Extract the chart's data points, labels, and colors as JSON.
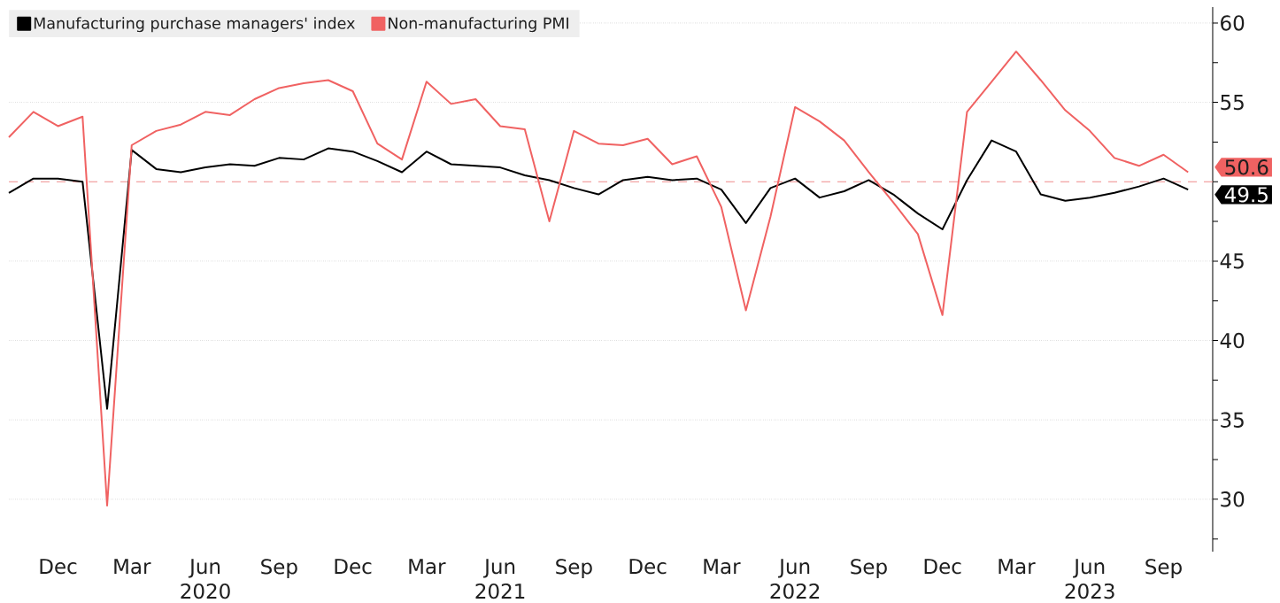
{
  "chart_data": {
    "type": "line",
    "x": [
      "2019-10",
      "2019-11",
      "2019-12",
      "2020-01",
      "2020-02",
      "2020-03",
      "2020-04",
      "2020-05",
      "2020-06",
      "2020-07",
      "2020-08",
      "2020-09",
      "2020-10",
      "2020-11",
      "2020-12",
      "2021-01",
      "2021-02",
      "2021-03",
      "2021-04",
      "2021-05",
      "2021-06",
      "2021-07",
      "2021-08",
      "2021-09",
      "2021-10",
      "2021-11",
      "2021-12",
      "2022-01",
      "2022-02",
      "2022-03",
      "2022-04",
      "2022-05",
      "2022-06",
      "2022-07",
      "2022-08",
      "2022-09",
      "2022-10",
      "2022-11",
      "2022-12",
      "2023-01",
      "2023-02",
      "2023-03",
      "2023-04",
      "2023-05",
      "2023-06",
      "2023-07",
      "2023-08",
      "2023-09",
      "2023-10"
    ],
    "series": [
      {
        "name": "Manufacturing purchase managers' index",
        "color": "#000000",
        "values": [
          49.3,
          50.2,
          50.2,
          50.0,
          35.7,
          52.0,
          50.8,
          50.6,
          50.9,
          51.1,
          51.0,
          51.5,
          51.4,
          52.1,
          51.9,
          51.3,
          50.6,
          51.9,
          51.1,
          51.0,
          50.9,
          50.4,
          50.1,
          49.6,
          49.2,
          50.1,
          50.3,
          50.1,
          50.2,
          49.5,
          47.4,
          49.6,
          50.2,
          49.0,
          49.4,
          50.1,
          49.2,
          48.0,
          47.0,
          50.1,
          52.6,
          51.9,
          49.2,
          48.8,
          49.0,
          49.3,
          49.7,
          50.2,
          49.5
        ],
        "value_labels": [
          null,
          null,
          null,
          null,
          null,
          null,
          null,
          null,
          null,
          null,
          null,
          null,
          null,
          null,
          null,
          null,
          null,
          null,
          null,
          null,
          null,
          null,
          null,
          null,
          null,
          null,
          null,
          null,
          null,
          null,
          null,
          null,
          null,
          null,
          null,
          null,
          null,
          null,
          null,
          null,
          null,
          null,
          null,
          null,
          null,
          null,
          null,
          null,
          "49.5"
        ]
      },
      {
        "name": "Non-manufacturing PMI",
        "color": "#f06262",
        "values": [
          52.8,
          54.4,
          53.5,
          54.1,
          29.6,
          52.3,
          53.2,
          53.6,
          54.4,
          54.2,
          55.2,
          55.9,
          56.2,
          56.4,
          55.7,
          52.4,
          51.4,
          56.3,
          54.9,
          55.2,
          53.5,
          53.3,
          47.5,
          53.2,
          52.4,
          52.3,
          52.7,
          51.1,
          51.6,
          48.4,
          41.9,
          47.8,
          54.7,
          53.8,
          52.6,
          50.6,
          48.7,
          46.7,
          41.6,
          54.4,
          56.3,
          58.2,
          56.4,
          54.5,
          53.2,
          51.5,
          51.0,
          51.7,
          50.6
        ],
        "value_labels": [
          null,
          null,
          null,
          null,
          null,
          null,
          null,
          null,
          null,
          null,
          null,
          null,
          null,
          null,
          null,
          null,
          null,
          null,
          null,
          null,
          null,
          null,
          null,
          null,
          null,
          null,
          null,
          null,
          null,
          null,
          null,
          null,
          null,
          null,
          null,
          null,
          null,
          null,
          null,
          null,
          null,
          null,
          null,
          null,
          null,
          null,
          null,
          null,
          "50.6"
        ]
      }
    ],
    "xlim": [
      "2019-10",
      "2023-11"
    ],
    "xticks": [
      {
        "value": "2019-12",
        "label": "Dec"
      },
      {
        "value": "2020-03",
        "label": "Mar"
      },
      {
        "value": "2020-06",
        "label": "Jun 2020"
      },
      {
        "value": "2020-09",
        "label": "Sep"
      },
      {
        "value": "2020-12",
        "label": "Dec"
      },
      {
        "value": "2021-03",
        "label": "Mar"
      },
      {
        "value": "2021-06",
        "label": "Jun 2021"
      },
      {
        "value": "2021-09",
        "label": "Sep"
      },
      {
        "value": "2021-12",
        "label": "Dec"
      },
      {
        "value": "2022-03",
        "label": "Mar"
      },
      {
        "value": "2022-06",
        "label": "Jun 2022"
      },
      {
        "value": "2022-09",
        "label": "Sep"
      },
      {
        "value": "2022-12",
        "label": "Dec"
      },
      {
        "value": "2023-03",
        "label": "Mar"
      },
      {
        "value": "2023-06",
        "label": "Jun 2023"
      },
      {
        "value": "2023-09",
        "label": "Sep"
      }
    ],
    "ylim": [
      26.7,
      61
    ],
    "yticks": [
      {
        "value": 27.5,
        "label": null
      },
      30,
      {
        "value": 32.5,
        "label": null
      },
      35,
      {
        "value": 37.5,
        "label": null
      },
      40,
      {
        "value": 42.5,
        "label": null
      },
      45,
      {
        "value": 47.5,
        "label": null
      },
      {
        "value": 50,
        "label": null
      },
      {
        "value": 52.5,
        "label": null
      },
      55,
      {
        "value": 57.5,
        "label": null
      },
      60
    ],
    "ref_lines": [
      {
        "axis": "y",
        "value": 50,
        "color": "#f08a8a",
        "line_style": "dashed"
      }
    ],
    "grid": "y",
    "legend": "top left"
  }
}
